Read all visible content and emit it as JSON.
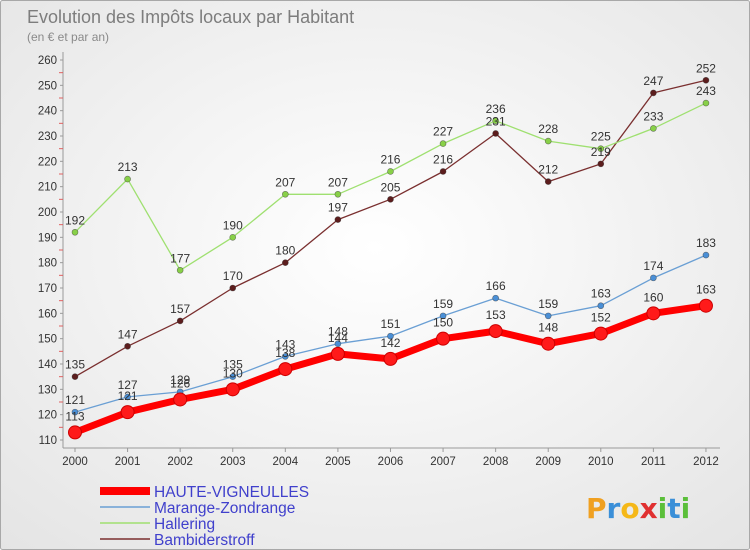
{
  "chart_data": {
    "type": "line",
    "title": "Evolution des Impôts locaux par Habitant",
    "subtitle": "(en € et par an)",
    "categories": [
      "2000",
      "2001",
      "2002",
      "2003",
      "2004",
      "2005",
      "2006",
      "2007",
      "2008",
      "2009",
      "2010",
      "2011",
      "2012"
    ],
    "yticks": [
      110,
      120,
      130,
      140,
      150,
      160,
      170,
      180,
      190,
      200,
      210,
      220,
      230,
      240,
      250,
      260
    ],
    "ylim": [
      110,
      260
    ],
    "grid": false,
    "series": [
      {
        "name": "HAUTE-VIGNEULLES",
        "color": "#ff0000",
        "marker": "#ff1a1a",
        "values": [
          113,
          121,
          126,
          130,
          138,
          144,
          142,
          150,
          153,
          148,
          152,
          160,
          163
        ]
      },
      {
        "name": "Marange-Zondrange",
        "color": "#6a9fd4",
        "marker": "#4a8fd6",
        "values": [
          121,
          127,
          129,
          135,
          143,
          148,
          151,
          159,
          166,
          159,
          163,
          174,
          183
        ]
      },
      {
        "name": "Hallering",
        "color": "#9fe070",
        "marker": "#88d048",
        "values": [
          192,
          213,
          177,
          190,
          207,
          207,
          216,
          227,
          236,
          228,
          225,
          233,
          243
        ]
      },
      {
        "name": "Bambiderstroff",
        "color": "#7a2f2f",
        "marker": "#5c1d1d",
        "values": [
          135,
          147,
          157,
          170,
          180,
          197,
          205,
          216,
          231,
          212,
          219,
          247,
          252
        ]
      }
    ]
  },
  "logo": {
    "text": "Proxiti",
    "colors": [
      "#f0a020",
      "#3a8fd8",
      "#f5b818",
      "#e03030",
      "#5bbf3a",
      "#3a8fd8",
      "#5bbf3a"
    ]
  }
}
